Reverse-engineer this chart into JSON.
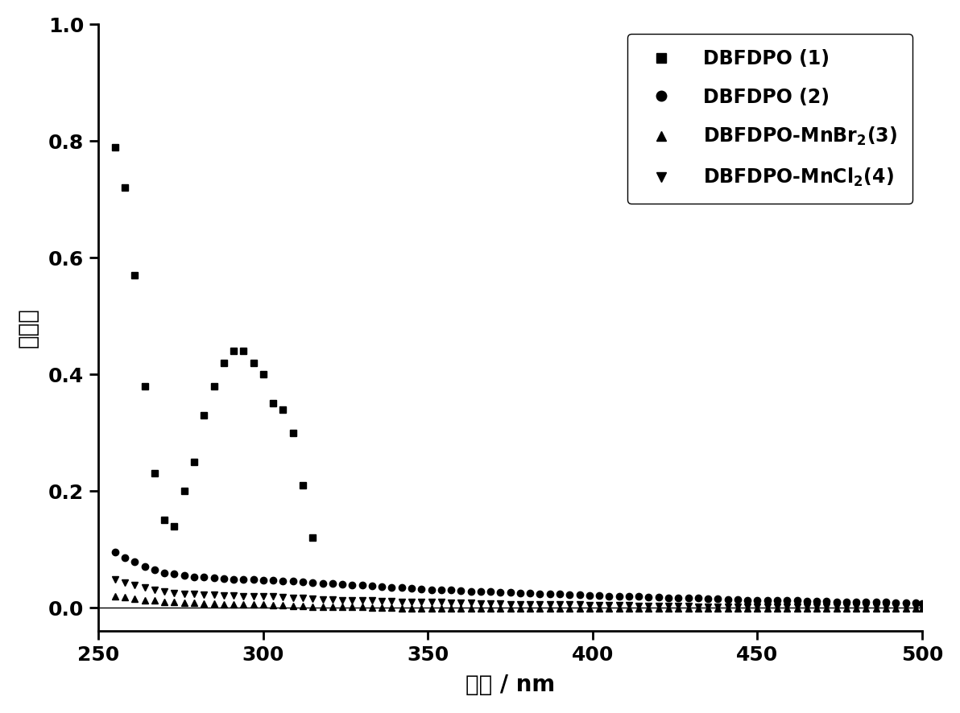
{
  "xlim": [
    250,
    500
  ],
  "ylim": [
    -0.04,
    1.0
  ],
  "yticks": [
    0.0,
    0.2,
    0.4,
    0.6,
    0.8,
    1.0
  ],
  "xticks": [
    250,
    300,
    350,
    400,
    450,
    500
  ],
  "xlabel": "波长 / nm",
  "ylabel": "吸收値",
  "series1_label": "DBFDPO (1)",
  "series2_label": "DBFDPO (2)",
  "series3_label": "DBFDPO-MnBr$_2$(3)",
  "series4_label": "DBFDPO-MnCl$_2$(4)",
  "series1_x": [
    255,
    258,
    261,
    264,
    267,
    270,
    273,
    276,
    279,
    282,
    285,
    288,
    291,
    294,
    297,
    300,
    303,
    306,
    309,
    312,
    315
  ],
  "series1_y": [
    0.79,
    0.72,
    0.57,
    0.38,
    0.23,
    0.15,
    0.14,
    0.2,
    0.25,
    0.33,
    0.38,
    0.42,
    0.44,
    0.44,
    0.42,
    0.4,
    0.35,
    0.34,
    0.3,
    0.21,
    0.12
  ],
  "series2_x": [
    255,
    258,
    261,
    264,
    267,
    270,
    273,
    276,
    279,
    282,
    285,
    288,
    291,
    294,
    297,
    300,
    303,
    306,
    309,
    312,
    315,
    318,
    321,
    324,
    327,
    330,
    333,
    336,
    339,
    342,
    345,
    348,
    351,
    354,
    357,
    360,
    363,
    366,
    369,
    372,
    375,
    378,
    381,
    384,
    387,
    390,
    393,
    396,
    399,
    402,
    405,
    408,
    411,
    414,
    417,
    420,
    423,
    426,
    429,
    432,
    435,
    438,
    441,
    444,
    447,
    450,
    453,
    456,
    459,
    462,
    465,
    468,
    471,
    474,
    477,
    480,
    483,
    486,
    489,
    492,
    495,
    498,
    500
  ],
  "series2_y": [
    0.095,
    0.085,
    0.078,
    0.07,
    0.065,
    0.06,
    0.058,
    0.055,
    0.053,
    0.052,
    0.051,
    0.05,
    0.049,
    0.049,
    0.048,
    0.047,
    0.047,
    0.046,
    0.045,
    0.044,
    0.043,
    0.042,
    0.041,
    0.04,
    0.039,
    0.038,
    0.037,
    0.036,
    0.035,
    0.034,
    0.033,
    0.032,
    0.031,
    0.03,
    0.03,
    0.029,
    0.028,
    0.028,
    0.027,
    0.026,
    0.026,
    0.025,
    0.025,
    0.024,
    0.023,
    0.023,
    0.022,
    0.022,
    0.021,
    0.021,
    0.02,
    0.02,
    0.019,
    0.019,
    0.018,
    0.018,
    0.017,
    0.017,
    0.016,
    0.016,
    0.015,
    0.015,
    0.014,
    0.014,
    0.013,
    0.013,
    0.013,
    0.012,
    0.012,
    0.012,
    0.011,
    0.011,
    0.011,
    0.01,
    0.01,
    0.01,
    0.009,
    0.009,
    0.009,
    0.008,
    0.008,
    0.008,
    0.007
  ],
  "series3_x": [
    255,
    258,
    261,
    264,
    267,
    270,
    273,
    276,
    279,
    282,
    285,
    288,
    291,
    294,
    297,
    300,
    303,
    306,
    309,
    312,
    315,
    318,
    321,
    324,
    327,
    330,
    333,
    336,
    339,
    342,
    345,
    348,
    351,
    354,
    357,
    360,
    363,
    366,
    369,
    372,
    375,
    378,
    381,
    384,
    387,
    390,
    393,
    396,
    399,
    402,
    405,
    408,
    411,
    414,
    417,
    420,
    423,
    426,
    429,
    432,
    435,
    438,
    441,
    444,
    447,
    450,
    453,
    456,
    459,
    462,
    465,
    468,
    471,
    474,
    477,
    480,
    483,
    486,
    489,
    492,
    495,
    498,
    500
  ],
  "series3_y": [
    0.02,
    0.018,
    0.015,
    0.013,
    0.012,
    0.01,
    0.009,
    0.008,
    0.008,
    0.007,
    0.007,
    0.006,
    0.006,
    0.006,
    0.005,
    0.005,
    0.004,
    0.004,
    0.003,
    0.003,
    0.002,
    0.002,
    0.001,
    0.001,
    0.001,
    0.001,
    0.0,
    0.0,
    0.0,
    -0.001,
    -0.001,
    -0.001,
    -0.001,
    -0.001,
    -0.001,
    -0.001,
    -0.001,
    -0.001,
    -0.001,
    -0.001,
    -0.001,
    -0.001,
    -0.001,
    -0.001,
    -0.001,
    -0.001,
    -0.001,
    -0.001,
    -0.001,
    -0.001,
    -0.001,
    -0.001,
    -0.001,
    -0.001,
    -0.001,
    -0.001,
    -0.001,
    -0.001,
    -0.001,
    -0.001,
    -0.001,
    -0.001,
    -0.001,
    -0.001,
    -0.001,
    -0.001,
    -0.001,
    -0.001,
    -0.001,
    -0.001,
    -0.001,
    -0.001,
    -0.001,
    -0.001,
    -0.001,
    -0.001,
    -0.001,
    -0.001,
    -0.001,
    -0.001,
    -0.001,
    -0.001,
    -0.001
  ],
  "series4_x": [
    255,
    258,
    261,
    264,
    267,
    270,
    273,
    276,
    279,
    282,
    285,
    288,
    291,
    294,
    297,
    300,
    303,
    306,
    309,
    312,
    315,
    318,
    321,
    324,
    327,
    330,
    333,
    336,
    339,
    342,
    345,
    348,
    351,
    354,
    357,
    360,
    363,
    366,
    369,
    372,
    375,
    378,
    381,
    384,
    387,
    390,
    393,
    396,
    399,
    402,
    405,
    408,
    411,
    414,
    417,
    420,
    423,
    426,
    429,
    432,
    435,
    438,
    441,
    444,
    447,
    450,
    453,
    456,
    459,
    462,
    465,
    468,
    471,
    474,
    477,
    480,
    483,
    486,
    489,
    492,
    495,
    498,
    500
  ],
  "series4_y": [
    0.048,
    0.043,
    0.038,
    0.034,
    0.03,
    0.027,
    0.025,
    0.024,
    0.023,
    0.022,
    0.022,
    0.021,
    0.021,
    0.02,
    0.02,
    0.019,
    0.019,
    0.018,
    0.017,
    0.016,
    0.015,
    0.014,
    0.014,
    0.013,
    0.013,
    0.012,
    0.012,
    0.011,
    0.011,
    0.01,
    0.01,
    0.009,
    0.009,
    0.009,
    0.008,
    0.008,
    0.008,
    0.007,
    0.007,
    0.007,
    0.006,
    0.006,
    0.006,
    0.006,
    0.005,
    0.005,
    0.005,
    0.005,
    0.004,
    0.004,
    0.004,
    0.004,
    0.004,
    0.003,
    0.003,
    0.003,
    0.003,
    0.003,
    0.003,
    0.002,
    0.002,
    0.002,
    0.002,
    0.002,
    0.002,
    0.002,
    0.002,
    0.001,
    0.001,
    0.001,
    0.001,
    0.001,
    0.001,
    0.001,
    0.001,
    0.001,
    0.001,
    0.001,
    0.001,
    0.001,
    0.001,
    0.001,
    0.001
  ],
  "color": "#000000",
  "marker_size": 6,
  "legend_fontsize": 17,
  "axis_fontsize": 20,
  "tick_fontsize": 18,
  "font_weight": "bold"
}
